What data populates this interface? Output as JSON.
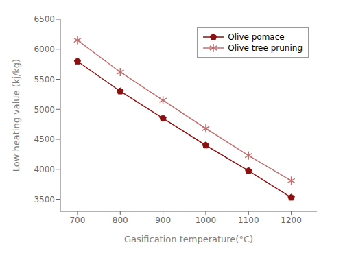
{
  "chart_data": {
    "type": "line",
    "x": [
      700,
      800,
      900,
      1000,
      1100,
      1200
    ],
    "series": [
      {
        "name": "Olive pomace",
        "color": "#8B1010",
        "marker": "pentagon",
        "values": [
          5800,
          5300,
          4850,
          4400,
          3975,
          3530
        ]
      },
      {
        "name": "Olive tree pruning",
        "color": "#C07070",
        "marker": "asterisk",
        "values": [
          6150,
          5620,
          5150,
          4680,
          4230,
          3810
        ]
      }
    ],
    "xlabel": "Gasification temperature(°C)",
    "ylabel": "Low heating value (kj/kg)",
    "xlim": [
      660,
      1260
    ],
    "ylim": [
      3300,
      6500
    ],
    "xticks": [
      700,
      800,
      900,
      1000,
      1100,
      1200
    ],
    "yticks": [
      3500,
      4000,
      4500,
      5000,
      5500,
      6000,
      6500
    ],
    "legend": "upper right",
    "grid": false
  }
}
